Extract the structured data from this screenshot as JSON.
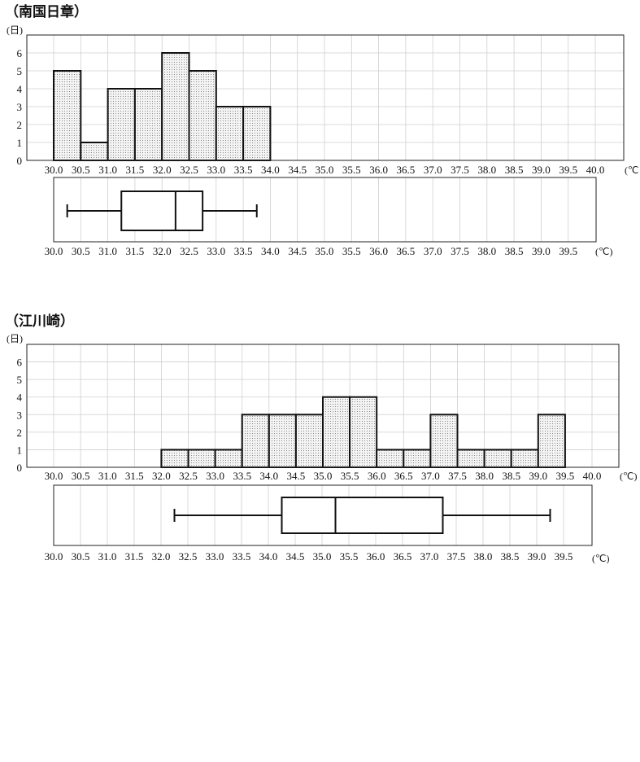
{
  "chart_data": [
    {
      "type": "bar",
      "title": "（南国日章）",
      "ylabel": "(日)",
      "xunit": "(℃",
      "x_ticks": [
        "30.0",
        "30.5",
        "31.0",
        "31.5",
        "32.0",
        "32.5",
        "33.0",
        "33.5",
        "34.0",
        "34.5",
        "35.0",
        "35.5",
        "36.0",
        "36.5",
        "37.0",
        "37.5",
        "38.0",
        "38.5",
        "39.0",
        "39.5",
        "40.0"
      ],
      "y_ticks": [
        "0",
        "1",
        "2",
        "3",
        "4",
        "5",
        "6"
      ],
      "xlim": [
        30.0,
        40.0
      ],
      "ylim": [
        0,
        7
      ],
      "bins": [
        {
          "from": 30.0,
          "to": 30.5,
          "count": 5
        },
        {
          "from": 30.5,
          "to": 31.0,
          "count": 1
        },
        {
          "from": 31.0,
          "to": 31.5,
          "count": 4
        },
        {
          "from": 31.5,
          "to": 32.0,
          "count": 4
        },
        {
          "from": 32.0,
          "to": 32.5,
          "count": 6
        },
        {
          "from": 32.5,
          "to": 33.0,
          "count": 5
        },
        {
          "from": 33.0,
          "to": 33.5,
          "count": 3
        },
        {
          "from": 33.5,
          "to": 34.0,
          "count": 3
        }
      ],
      "boxplot": {
        "x_ticks": [
          "30.0",
          "30.5",
          "31.0",
          "31.5",
          "32.0",
          "32.5",
          "33.0",
          "33.5",
          "34.0",
          "34.5",
          "35.0",
          "35.5",
          "36.0",
          "36.5",
          "37.0",
          "37.5",
          "38.0",
          "38.5",
          "39.0",
          "39.5"
        ],
        "xunit": "(℃)",
        "min": 30.25,
        "q1": 31.25,
        "median": 32.25,
        "q3": 32.75,
        "max": 33.75
      }
    },
    {
      "type": "bar",
      "title": "（江川崎）",
      "ylabel": "(日)",
      "xunit": "(℃)",
      "x_ticks": [
        "30.0",
        "30.5",
        "31.0",
        "31.5",
        "32.0",
        "32.5",
        "33.0",
        "33.5",
        "34.0",
        "34.5",
        "35.0",
        "35.5",
        "36.0",
        "36.5",
        "37.0",
        "37.5",
        "38.0",
        "38.5",
        "39.0",
        "39.5",
        "40.0"
      ],
      "y_ticks": [
        "0",
        "1",
        "2",
        "3",
        "4",
        "5",
        "6"
      ],
      "xlim": [
        30.0,
        40.0
      ],
      "ylim": [
        0,
        7
      ],
      "bins": [
        {
          "from": 32.0,
          "to": 32.5,
          "count": 1
        },
        {
          "from": 32.5,
          "to": 33.0,
          "count": 1
        },
        {
          "from": 33.0,
          "to": 33.5,
          "count": 1
        },
        {
          "from": 33.5,
          "to": 34.0,
          "count": 3
        },
        {
          "from": 34.0,
          "to": 34.5,
          "count": 3
        },
        {
          "from": 34.5,
          "to": 35.0,
          "count": 3
        },
        {
          "from": 35.0,
          "to": 35.5,
          "count": 4
        },
        {
          "from": 35.5,
          "to": 36.0,
          "count": 4
        },
        {
          "from": 36.0,
          "to": 36.5,
          "count": 1
        },
        {
          "from": 36.5,
          "to": 37.0,
          "count": 1
        },
        {
          "from": 37.0,
          "to": 37.5,
          "count": 3
        },
        {
          "from": 37.5,
          "to": 38.0,
          "count": 1
        },
        {
          "from": 38.0,
          "to": 38.5,
          "count": 1
        },
        {
          "from": 38.5,
          "to": 39.0,
          "count": 1
        },
        {
          "from": 39.0,
          "to": 39.5,
          "count": 3
        }
      ],
      "boxplot": {
        "x_ticks": [
          "30.0",
          "30.5",
          "31.0",
          "31.5",
          "32.0",
          "32.5",
          "33.0",
          "33.5",
          "34.0",
          "34.5",
          "35.0",
          "35.5",
          "36.0",
          "36.5",
          "37.0",
          "37.5",
          "38.0",
          "38.5",
          "39.0",
          "39.5"
        ],
        "xunit": "(℃)",
        "min": 32.25,
        "q1": 34.25,
        "median": 35.25,
        "q3": 37.25,
        "max": 39.25
      }
    }
  ]
}
